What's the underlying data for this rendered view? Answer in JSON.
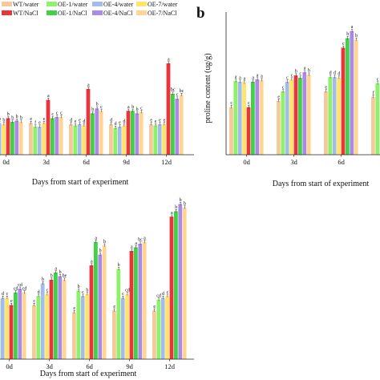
{
  "figure": {
    "panel_b_tag": "b"
  },
  "legend": [
    {
      "label": "WT/water",
      "color": "#f6c89a"
    },
    {
      "label": "OE-1/water",
      "color": "#8ff06a"
    },
    {
      "label": "OE-4/water",
      "color": "#a3bde8"
    },
    {
      "label": "OE-7/water",
      "color": "#ffe46b"
    },
    {
      "label": "WT/NaCl",
      "color": "#e8343a"
    },
    {
      "label": "OE-1/NaCl",
      "color": "#3fd247"
    },
    {
      "label": "OE-4/NaCl",
      "color": "#a98ae6"
    },
    {
      "label": "OE-7/NaCl",
      "color": "#ffd591"
    }
  ],
  "series_colors": [
    "#f6c89a",
    "#8ff06a",
    "#a3bde8",
    "#ffe46b",
    "#e8343a",
    "#3fd247",
    "#a98ae6",
    "#ffd591"
  ],
  "chart_data": [
    {
      "type": "bar",
      "panel": "a",
      "categories": [
        "0d",
        "3d",
        "6d",
        "9d",
        "12d"
      ],
      "xlabel": "Days from start of experiment",
      "ylabel": "",
      "ylim": [
        0,
        100
      ],
      "series": [
        {
          "name": "WT/water",
          "values": [
            25,
            26,
            25,
            25,
            25
          ]
        },
        {
          "name": "OE-1/water",
          "values": [
            25,
            23,
            24,
            22,
            24
          ]
        },
        {
          "name": "OE-4/water",
          "values": [
            26,
            23,
            25,
            23,
            25
          ]
        },
        {
          "name": "OE-7/water",
          "values": [
            25,
            26,
            24,
            24,
            25
          ]
        },
        {
          "name": "WT/NaCl",
          "values": [
            30,
            45,
            54,
            36,
            75
          ]
        },
        {
          "name": "OE-1/NaCl",
          "values": [
            27,
            30,
            34,
            36,
            50
          ]
        },
        {
          "name": "OE-4/NaCl",
          "values": [
            28,
            31,
            38,
            34,
            46
          ]
        },
        {
          "name": "OE-7/NaCl",
          "values": [
            27,
            31,
            36,
            35,
            49
          ]
        }
      ],
      "letters": [
        [
          "b",
          "e",
          "d",
          "d",
          "e"
        ],
        [
          "b",
          "f",
          "e",
          "d",
          "e"
        ],
        [
          "b",
          "e",
          "e",
          "e",
          "e"
        ],
        [
          "b",
          "e",
          "d",
          "d",
          "e"
        ],
        [
          "b",
          "a",
          "a",
          "a",
          "a"
        ],
        [
          "b",
          "c",
          "b",
          "b",
          "bc"
        ],
        [
          "b",
          "c",
          "b",
          "b",
          "c"
        ],
        [
          "b",
          "c",
          "c",
          "c",
          "bc"
        ]
      ]
    },
    {
      "type": "bar",
      "panel": "b",
      "categories": [
        "0d",
        "3d",
        "6d",
        "9d"
      ],
      "xlabel": "Days from start of experiment",
      "ylabel": "proline content (ug/g)",
      "ylim": [
        0,
        180
      ],
      "series": [
        {
          "name": "WT/water",
          "values": [
            60,
            68,
            80,
            73
          ]
        },
        {
          "name": "OE-1/water",
          "values": [
            93,
            80,
            98,
            90
          ]
        },
        {
          "name": "OE-4/water",
          "values": [
            92,
            92,
            98,
            103
          ]
        },
        {
          "name": "OE-7/water",
          "values": [
            91,
            95,
            97,
            96
          ]
        },
        {
          "name": "WT/NaCl",
          "values": [
            60,
            100,
            135,
            122
          ]
        },
        {
          "name": "OE-1/NaCl",
          "values": [
            92,
            97,
            147,
            168
          ]
        },
        {
          "name": "OE-4/NaCl",
          "values": [
            95,
            104,
            156,
            160
          ]
        },
        {
          "name": "OE-7/NaCl",
          "values": [
            94,
            101,
            145,
            160
          ]
        }
      ],
      "letters": [
        [
          "c",
          "e",
          "e",
          "f"
        ],
        [
          "a",
          "c",
          "d",
          "c"
        ],
        [
          "a",
          "c",
          "d",
          "c"
        ],
        [
          "a",
          "c",
          "d",
          "e"
        ],
        [
          "c",
          "b",
          "c",
          "d"
        ],
        [
          "a",
          "c",
          "b",
          "a"
        ],
        [
          "a",
          "a",
          "a",
          "b"
        ],
        [
          "a",
          "b",
          "b",
          "b"
        ]
      ]
    },
    {
      "type": "bar",
      "panel": "c",
      "categories": [
        "0d",
        "3d",
        "6d",
        "9d",
        "12d"
      ],
      "xlabel": "Days from start of experiment",
      "ylabel": "",
      "ylim": [
        0,
        100
      ],
      "series": [
        {
          "name": "WT/water",
          "values": [
            30,
            30,
            26,
            27,
            27
          ]
        },
        {
          "name": "OE-1/water",
          "values": [
            33,
            35,
            38,
            50,
            33
          ]
        },
        {
          "name": "OE-4/water",
          "values": [
            34,
            42,
            35,
            34,
            34
          ]
        },
        {
          "name": "OE-7/water",
          "values": [
            34,
            36,
            36,
            36,
            35
          ]
        },
        {
          "name": "WT/NaCl",
          "values": [
            30,
            44,
            52,
            60,
            79
          ]
        },
        {
          "name": "OE-1/NaCl",
          "values": [
            37,
            48,
            65,
            62,
            82
          ]
        },
        {
          "name": "OE-4/NaCl",
          "values": [
            39,
            46,
            58,
            64,
            86
          ]
        },
        {
          "name": "OE-7/NaCl",
          "values": [
            37,
            44,
            63,
            65,
            84
          ]
        }
      ],
      "letters": [
        [
          "e",
          "c",
          "e",
          "e",
          "e"
        ],
        [
          "d",
          "d",
          "b",
          "b",
          "cd"
        ],
        [
          "d",
          "b",
          "c",
          "c",
          "d"
        ],
        [
          "c",
          "c",
          "b",
          "cd",
          "c"
        ],
        [
          "e",
          "b",
          "a",
          "a",
          "a"
        ],
        [
          "cd",
          "a",
          "a",
          "a",
          "b"
        ],
        [
          "cd",
          "b",
          "b",
          "bc",
          "b"
        ],
        [
          "cd",
          "be",
          "b",
          "a",
          "b"
        ]
      ]
    }
  ]
}
